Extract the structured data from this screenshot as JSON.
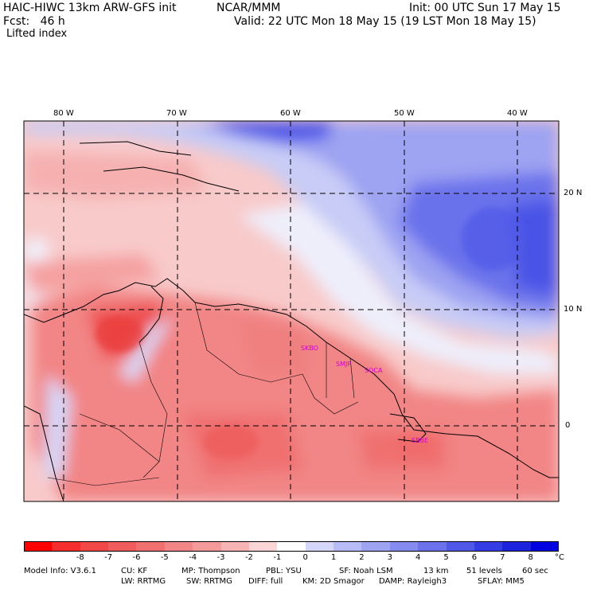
{
  "header": {
    "model_title": "HAIC-HIWC 13km ARW-GFS init",
    "org": "NCAR/MMM",
    "init": "Init: 00 UTC Sun 17 May 15",
    "fcst": "Fcst:   46 h",
    "valid": "Valid: 22 UTC Mon 18 May 15 (19 LST Mon 18 May 15)",
    "field": "Lifted index"
  },
  "map": {
    "lon_labels": [
      "80 W",
      "70 W",
      "60 W",
      "50 W",
      "40 W"
    ],
    "lat_labels": [
      "20 N",
      "10 N",
      "0"
    ],
    "stations": [
      "SKBO",
      "SMJP",
      "SOCA",
      "SBBE"
    ],
    "colors": {
      "strong_negative": "#ee3c3c",
      "negative": "#f58a8a",
      "weak_negative": "#fbc8c8",
      "neutral": "#f4f4fa",
      "weak_positive": "#c8ccf6",
      "positive": "#8c94ee",
      "strong_positive": "#3c46e6",
      "station_label": "#d400d4"
    }
  },
  "colorbar": {
    "unit": "°C",
    "labels": [
      "-8",
      "-7",
      "-6",
      "-5",
      "-4",
      "-3",
      "-2",
      "-1",
      "0",
      "1",
      "2",
      "3",
      "4",
      "5",
      "6",
      "7",
      "8"
    ],
    "colors": [
      "#ff0000",
      "#f52d2d",
      "#f24747",
      "#f05b5b",
      "#f07070",
      "#f28585",
      "#f59a9a",
      "#f8b4b4",
      "#fcd6d6",
      "#ffffff",
      "#d6d6fa",
      "#b8bcf6",
      "#9ea3f2",
      "#858bef",
      "#6b72eb",
      "#5058e8",
      "#343de3",
      "#1c24dd",
      "#0000e0"
    ]
  },
  "footer": {
    "line1": [
      "Model Info: V3.6.1",
      "CU: KF",
      "MP: Thompson",
      "PBL: YSU",
      "SF: Noah LSM",
      "13 km",
      "51 levels",
      "60 sec"
    ],
    "line2": [
      "LW: RRTMG",
      "SW: RRTMG",
      "DIFF: full",
      "KM: 2D Smagor",
      "DAMP: Rayleigh3",
      "SFLAY: MM5"
    ]
  }
}
